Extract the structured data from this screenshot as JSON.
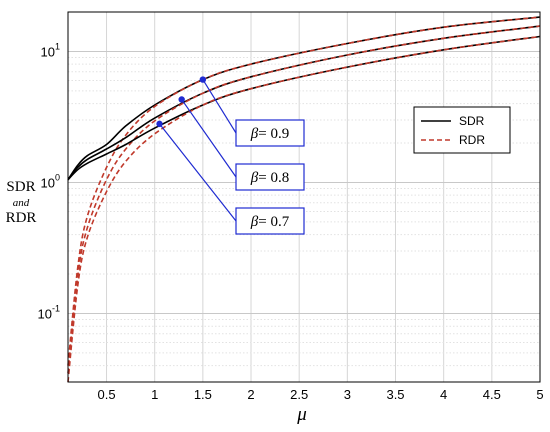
{
  "chart_data": {
    "type": "line",
    "x_label": "μ",
    "y_label": {
      "line1": "SDR",
      "line2": "and",
      "line3": "RDR"
    },
    "x_range": [
      0.1,
      5
    ],
    "y_range": [
      0.03,
      20
    ],
    "y_scale": "log",
    "grid": true,
    "x_ticks": [
      "0.5",
      "1",
      "1.5",
      "2",
      "2.5",
      "3",
      "3.5",
      "4",
      "4.5",
      "5"
    ],
    "y_ticks": [
      {
        "value": 10,
        "base": "10",
        "exp": "1"
      },
      {
        "value": 1,
        "base": "10",
        "exp": "0"
      },
      {
        "value": 0.1,
        "base": "10",
        "exp": "-1"
      }
    ],
    "legend_position": "right",
    "legend": [
      {
        "label": "SDR",
        "style": "solid",
        "color": "#000000"
      },
      {
        "label": "RDR",
        "style": "dashed",
        "color": "#c0392b"
      }
    ],
    "series": [
      {
        "beta": "0.9",
        "x": [
          0.1,
          0.2,
          0.3,
          0.5,
          0.7,
          1.0,
          1.5,
          2.0,
          3.0,
          4.0,
          5.0
        ],
        "sdr": [
          1.05,
          1.35,
          1.6,
          1.95,
          2.7,
          3.9,
          6.1,
          8.0,
          11.5,
          15.3,
          18.3
        ],
        "rdr": [
          0.04,
          0.22,
          0.55,
          1.3,
          2.3,
          3.8,
          6.1,
          8.0,
          11.5,
          15.3,
          18.3
        ]
      },
      {
        "beta": "0.8",
        "x": [
          0.1,
          0.2,
          0.3,
          0.5,
          0.7,
          1.0,
          1.5,
          2.0,
          3.0,
          4.0,
          5.0
        ],
        "sdr": [
          1.05,
          1.3,
          1.5,
          1.8,
          2.2,
          3.1,
          4.8,
          6.4,
          9.4,
          12.6,
          15.6
        ],
        "rdr": [
          0.035,
          0.19,
          0.45,
          1.05,
          1.8,
          2.95,
          4.8,
          6.4,
          9.4,
          12.6,
          15.6
        ]
      },
      {
        "beta": "0.7",
        "x": [
          0.1,
          0.2,
          0.3,
          0.5,
          0.7,
          1.0,
          1.5,
          2.0,
          3.0,
          4.0,
          5.0
        ],
        "sdr": [
          1.05,
          1.25,
          1.4,
          1.65,
          1.95,
          2.6,
          3.9,
          5.2,
          7.6,
          10.3,
          13.0
        ],
        "rdr": [
          0.03,
          0.16,
          0.38,
          0.85,
          1.45,
          2.35,
          3.9,
          5.2,
          7.6,
          10.3,
          13.0
        ]
      }
    ],
    "annotations": [
      {
        "beta": "0.9",
        "point": [
          1.5,
          6.1
        ],
        "text_prefix": "β",
        "text_value": "= 0.9"
      },
      {
        "beta": "0.8",
        "point": [
          1.28,
          4.3
        ],
        "text_prefix": "β",
        "text_value": "= 0.8"
      },
      {
        "beta": "0.7",
        "point": [
          1.05,
          2.8
        ],
        "text_prefix": "β",
        "text_value": "= 0.7"
      }
    ]
  }
}
